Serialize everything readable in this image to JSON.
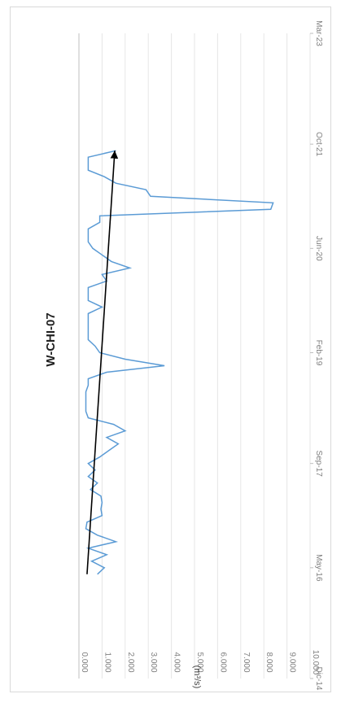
{
  "chart_data": {
    "type": "line",
    "title": "W-CHI-07",
    "ylabel": "(m³/s)",
    "ylim": [
      0,
      10
    ],
    "y_ticks": [
      "0.000",
      "1.000",
      "2.000",
      "3.000",
      "4.000",
      "5.000",
      "6.000",
      "7.000",
      "8.000",
      "9.000",
      "10.000"
    ],
    "x_ticks": [
      {
        "label": "Dic-14",
        "t": 0
      },
      {
        "label": "May-16",
        "t": 17
      },
      {
        "label": "Sep-17",
        "t": 33
      },
      {
        "label": "Feb-19",
        "t": 50
      },
      {
        "label": "Jun-20",
        "t": 66
      },
      {
        "label": "Oct-21",
        "t": 82
      },
      {
        "label": "Mar-23",
        "t": 99
      }
    ],
    "x_range": [
      0,
      99
    ],
    "colors": {
      "series": "#5b9bd5",
      "trend": "#000000"
    },
    "series": [
      {
        "values": [
          [
            16,
            0.8
          ],
          [
            17,
            1.1
          ],
          [
            18,
            0.55
          ],
          [
            19,
            1.2
          ],
          [
            20,
            0.4
          ],
          [
            21,
            1.6
          ],
          [
            22,
            0.8
          ],
          [
            23,
            0.3
          ],
          [
            24,
            0.35
          ],
          [
            25,
            1.0
          ],
          [
            26,
            0.95
          ],
          [
            27,
            1.0
          ],
          [
            28,
            0.95
          ],
          [
            29,
            0.5
          ],
          [
            30,
            0.8
          ],
          [
            31,
            0.4
          ],
          [
            32,
            0.7
          ],
          [
            33,
            0.4
          ],
          [
            34,
            0.9
          ],
          [
            35,
            1.3
          ],
          [
            36,
            1.7
          ],
          [
            37,
            1.2
          ],
          [
            38,
            2.0
          ],
          [
            39,
            1.5
          ],
          [
            40,
            0.4
          ],
          [
            41,
            0.3
          ],
          [
            42,
            0.3
          ],
          [
            43,
            0.3
          ],
          [
            44,
            0.3
          ],
          [
            45,
            0.4
          ],
          [
            46,
            0.4
          ],
          [
            47,
            1.2
          ],
          [
            48,
            3.7
          ],
          [
            49,
            2.0
          ],
          [
            50,
            0.9
          ],
          [
            51,
            0.7
          ],
          [
            52,
            0.4
          ],
          [
            53,
            0.4
          ],
          [
            54,
            0.4
          ],
          [
            55,
            0.4
          ],
          [
            56,
            0.4
          ],
          [
            57,
            1.0
          ],
          [
            58,
            0.4
          ],
          [
            59,
            0.4
          ],
          [
            60,
            0.4
          ],
          [
            61,
            1.2
          ],
          [
            62,
            1.0
          ],
          [
            63,
            2.2
          ],
          [
            64,
            1.4
          ],
          [
            65,
            1.0
          ],
          [
            66,
            0.6
          ],
          [
            67,
            0.4
          ],
          [
            68,
            0.4
          ],
          [
            69,
            0.4
          ],
          [
            70,
            0.9
          ],
          [
            71,
            0.9
          ],
          [
            72,
            8.3
          ],
          [
            73,
            8.4
          ],
          [
            74,
            3.1
          ],
          [
            75,
            2.9
          ],
          [
            76,
            1.6
          ],
          [
            77,
            1.1
          ],
          [
            78,
            0.4
          ],
          [
            79,
            0.4
          ],
          [
            80,
            0.4
          ],
          [
            81,
            1.6
          ]
        ]
      }
    ],
    "trendline": [
      [
        16,
        0.35
      ],
      [
        81,
        1.55
      ]
    ]
  }
}
